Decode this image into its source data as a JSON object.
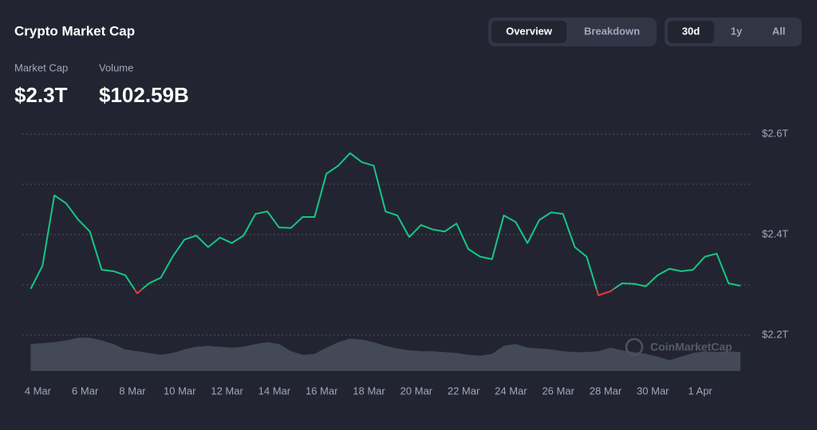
{
  "header": {
    "title": "Crypto Market Cap",
    "view_tabs": [
      "Overview",
      "Breakdown"
    ],
    "range_tabs": [
      "30d",
      "1y",
      "All"
    ]
  },
  "stats": [
    {
      "label": "Market Cap",
      "value": "$2.3T"
    },
    {
      "label": "Volume",
      "value": "$102.59B"
    }
  ],
  "chart_data": {
    "type": "line",
    "watermark": "CoinMarketCap",
    "x": [
      3.7,
      4.2,
      4.7,
      5.2,
      5.7,
      6.2,
      6.7,
      7.2,
      7.7,
      8.2,
      8.7,
      9.2,
      9.7,
      10.2,
      10.7,
      11.2,
      11.7,
      12.2,
      12.7,
      13.2,
      13.7,
      14.2,
      14.7,
      15.2,
      15.7,
      16.2,
      16.7,
      17.2,
      17.7,
      18.2,
      18.7,
      19.2,
      19.7,
      20.2,
      20.7,
      21.2,
      21.7,
      22.2,
      22.7,
      23.2,
      23.7,
      24.2,
      24.7,
      25.2,
      25.7,
      26.2,
      26.7,
      27.2,
      27.7,
      28.2,
      28.7,
      29.2,
      29.7,
      30.2,
      30.7,
      31.2,
      31.7,
      32.2,
      32.7,
      33.2,
      33.7
    ],
    "series": [
      {
        "name": "Market Cap",
        "color": "#16c784",
        "down_color": "#ea3943",
        "values": [
          2.292,
          2.338,
          2.478,
          2.462,
          2.43,
          2.406,
          2.33,
          2.327,
          2.319,
          2.283,
          2.303,
          2.314,
          2.356,
          2.39,
          2.398,
          2.375,
          2.394,
          2.383,
          2.398,
          2.441,
          2.446,
          2.414,
          2.413,
          2.435,
          2.435,
          2.521,
          2.537,
          2.562,
          2.544,
          2.537,
          2.446,
          2.438,
          2.395,
          2.419,
          2.41,
          2.406,
          2.422,
          2.371,
          2.356,
          2.351,
          2.438,
          2.425,
          2.383,
          2.429,
          2.444,
          2.441,
          2.375,
          2.356,
          2.279,
          2.287,
          2.303,
          2.302,
          2.297,
          2.319,
          2.332,
          2.327,
          2.33,
          2.356,
          2.362,
          2.303,
          2.298
        ]
      },
      {
        "name": "Volume",
        "color": "#4d5263",
        "axis": "y2",
        "values": [
          150,
          155,
          160,
          170,
          185,
          185,
          170,
          150,
          120,
          110,
          100,
          90,
          100,
          120,
          135,
          140,
          135,
          130,
          135,
          150,
          160,
          150,
          110,
          90,
          95,
          130,
          160,
          180,
          175,
          160,
          140,
          125,
          115,
          110,
          110,
          105,
          100,
          90,
          85,
          95,
          140,
          150,
          130,
          125,
          120,
          110,
          105,
          105,
          110,
          130,
          115,
          105,
          95,
          80,
          60,
          80,
          100,
          110,
          105,
          110,
          105
        ]
      }
    ],
    "xlim": [
      3.65,
      33.7
    ],
    "xticks": [
      {
        "value": 4,
        "label": "4 Mar"
      },
      {
        "value": 6,
        "label": "6 Mar"
      },
      {
        "value": 8,
        "label": "8 Mar"
      },
      {
        "value": 10,
        "label": "10 Mar"
      },
      {
        "value": 12,
        "label": "12 Mar"
      },
      {
        "value": 14,
        "label": "14 Mar"
      },
      {
        "value": 16,
        "label": "16 Mar"
      },
      {
        "value": 18,
        "label": "18 Mar"
      },
      {
        "value": 20,
        "label": "20 Mar"
      },
      {
        "value": 22,
        "label": "22 Mar"
      },
      {
        "value": 24,
        "label": "24 Mar"
      },
      {
        "value": 26,
        "label": "26 Mar"
      },
      {
        "value": 28,
        "label": "28 Mar"
      },
      {
        "value": 30,
        "label": "30 Mar"
      },
      {
        "value": 32,
        "label": "1 Apr"
      }
    ],
    "ylim": [
      2.2,
      2.6
    ],
    "yticks": [
      {
        "value": 2.2,
        "label": "$2.2T"
      },
      {
        "value": 2.4,
        "label": "$2.4T"
      },
      {
        "value": 2.6,
        "label": "$2.6T"
      }
    ],
    "minor_yticks": [
      2.3,
      2.5
    ],
    "y2lim": [
      0,
      200
    ],
    "grid": true
  }
}
